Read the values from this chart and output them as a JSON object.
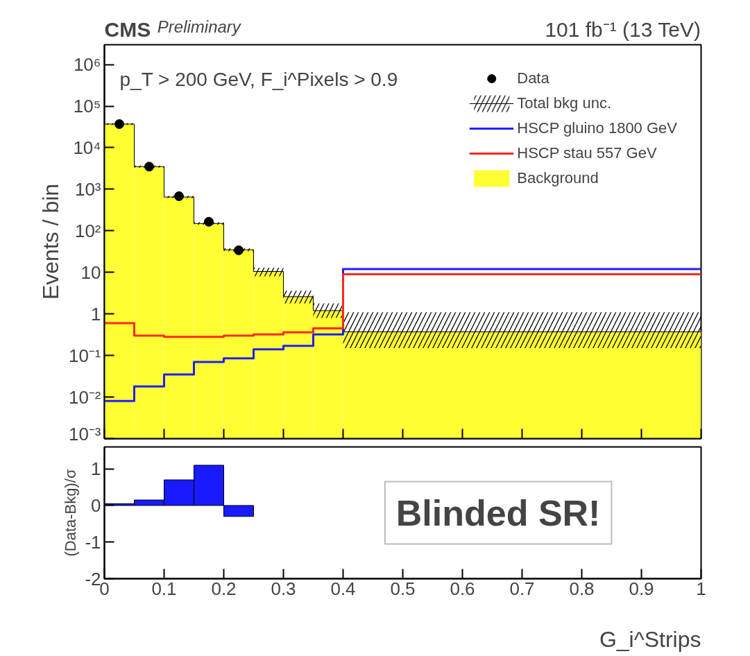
{
  "chart_data": [
    {
      "type": "histogram",
      "title": "CMS",
      "subtitle": "Preliminary",
      "ylabel": "Events / bin",
      "bins": [
        0,
        0.05,
        0.1,
        0.15,
        0.2,
        0.25,
        0.3,
        0.35,
        0.4,
        1
      ],
      "series": [
        {
          "name": "Data",
          "type": "scatter",
          "marker": "circle",
          "color": "#000000",
          "x": [
            0.025,
            0.075,
            0.125,
            0.175,
            0.225
          ],
          "values": [
            37000,
            3500,
            680,
            165,
            34
          ]
        },
        {
          "name": "Total bkg unc.",
          "type": "step",
          "color": "#000000",
          "x": [
            0,
            0.05,
            0.1,
            0.15,
            0.2,
            0.25,
            0.3,
            0.35,
            0.4,
            1
          ],
          "values": [
            37000,
            3500,
            650,
            150,
            35,
            10.5,
            2.6,
            1.2,
            0.37,
            0.37
          ],
          "lower": [
            35000,
            3300,
            610,
            140,
            32,
            8,
            1.8,
            0.8,
            0.15,
            0.15
          ],
          "upper": [
            39000,
            3700,
            690,
            160,
            38,
            13,
            3.6,
            1.8,
            1.1,
            1.1
          ]
        },
        {
          "name": "HSCP gluino 1800 GeV",
          "type": "step",
          "color": "#1f1fff",
          "x": [
            0,
            0.05,
            0.1,
            0.15,
            0.2,
            0.25,
            0.3,
            0.35,
            0.4,
            1
          ],
          "values": [
            0.008,
            0.018,
            0.035,
            0.07,
            0.085,
            0.14,
            0.17,
            0.32,
            12,
            12
          ]
        },
        {
          "name": "HSCP stau 557 GeV",
          "type": "step",
          "color": "#ff2a1a",
          "x": [
            0,
            0.05,
            0.1,
            0.15,
            0.2,
            0.25,
            0.3,
            0.35,
            0.4,
            1
          ],
          "values": [
            0.6,
            0.3,
            0.28,
            0.28,
            0.3,
            0.32,
            0.36,
            0.45,
            9,
            9
          ]
        },
        {
          "name": "Background",
          "type": "histogram",
          "color": "#ffff33",
          "values": [
            37000,
            3500,
            650,
            150,
            35,
            10.5,
            2.6,
            1.2,
            0.37
          ]
        }
      ],
      "xlim": [
        0,
        1
      ],
      "xticks": [
        0,
        0.1,
        0.2,
        0.3,
        0.4,
        0.5,
        0.6,
        0.7,
        0.8,
        0.9,
        1
      ],
      "ylim": [
        0.001,
        3000000
      ],
      "yticks": [
        {
          "value": 0.001,
          "label": "10⁻³"
        },
        {
          "value": 0.01,
          "label": "10⁻²"
        },
        {
          "value": 0.1,
          "label": "10⁻¹"
        },
        1,
        10,
        {
          "value": 100,
          "label": "10²"
        },
        {
          "value": 1000,
          "label": "10³"
        },
        {
          "value": 10000,
          "label": "10⁴"
        },
        {
          "value": 100000,
          "label": "10⁵"
        },
        {
          "value": 1000000,
          "label": "10⁶"
        }
      ],
      "log": "y",
      "tick_labels": "y",
      "legend": "top right",
      "grid": false,
      "annotations": [
        "101 fb⁻¹ (13 TeV)",
        "p_T > 200 GeV, F_i^Pixels > 0.9"
      ]
    },
    {
      "type": "histogram",
      "xlabel": "G_i^Strips",
      "ylabel": "(Data-Bkg)/σ",
      "bins": [
        0,
        0.05,
        0.1,
        0.15,
        0.2,
        0.25
      ],
      "values": [
        0.05,
        0.15,
        0.7,
        1.1,
        -0.3
      ],
      "color": "#1a1aff",
      "xlim": [
        0,
        1
      ],
      "xticks": [
        0,
        0.1,
        0.2,
        0.3,
        0.4,
        0.5,
        0.6,
        0.7,
        0.8,
        0.9,
        1
      ],
      "ylim": [
        -2,
        1.6
      ],
      "yticks": [
        -2,
        -1,
        0,
        1
      ],
      "grid": false,
      "annotations": [
        "Blinded SR!"
      ]
    }
  ]
}
